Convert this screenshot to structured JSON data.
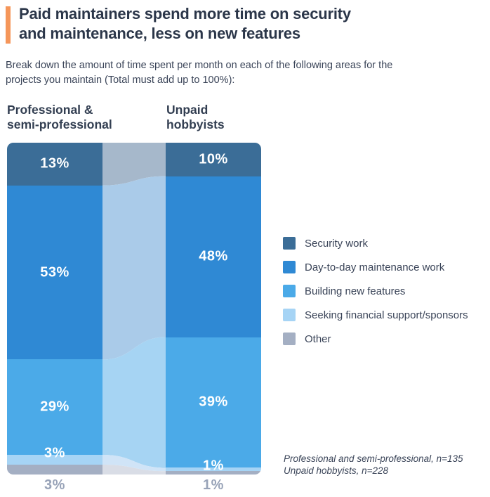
{
  "accent_color": "#f5965a",
  "header": {
    "title_line1": "Paid maintainers spend more time on security",
    "title_line2": "and maintenance, less on new features",
    "subtitle": "Break down the amount of time spent per month on each of the following areas for the projects you maintain (Total must add up to 100%):"
  },
  "chart_data": {
    "type": "bar",
    "subtype": "stacked-percentage-flow",
    "unit": "%",
    "columns": [
      {
        "id": "professional",
        "label_line1": "Professional &",
        "label_line2": "semi-professional",
        "values": [
          13,
          53,
          29,
          3,
          3
        ]
      },
      {
        "id": "hobbyists",
        "label_line1": "Unpaid",
        "label_line2": "hobbyists",
        "values": [
          10,
          48,
          39,
          1,
          1
        ]
      }
    ],
    "series": [
      {
        "name": "Security work",
        "color": "#3b6d97",
        "flow_color": "#a6b8cb"
      },
      {
        "name": "Day-to-day maintenance work",
        "color": "#2f89d4",
        "flow_color": "#aacbe9"
      },
      {
        "name": "Building new features",
        "color": "#4baae8",
        "flow_color": "#a6d4f3"
      },
      {
        "name": "Seeking financial support/sponsors",
        "color": "#a6d4f5",
        "flow_color": "#d0e4f7"
      },
      {
        "name": "Other",
        "color": "#a4afc3",
        "flow_color": "#d9dde6"
      }
    ],
    "layout": {
      "legend_position": "right",
      "other_labeled_below_bar": true,
      "grid": false
    }
  },
  "footnote": {
    "line1": "Professional and semi-professional, n=135",
    "line2": "Unpaid hobbyists, n=228"
  }
}
